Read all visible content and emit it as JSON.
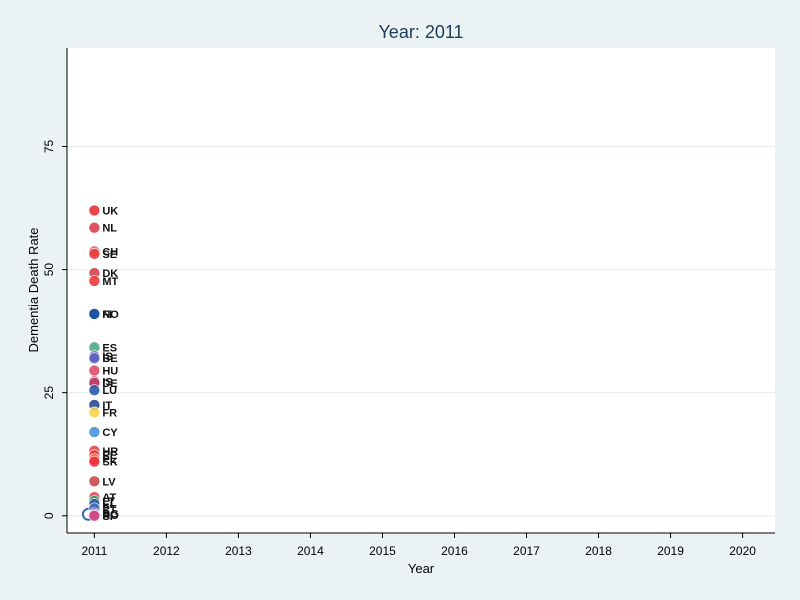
{
  "chart_data": {
    "type": "scatter",
    "title": "Year: 2011",
    "xlabel": "Year",
    "ylabel": "Dementia Death Rate",
    "xlim": [
      2010.62,
      2020.45
    ],
    "ylim": [
      -3.5,
      95
    ],
    "xticks": [
      2011,
      2012,
      2013,
      2014,
      2015,
      2016,
      2017,
      2018,
      2019,
      2020
    ],
    "yticks": [
      0,
      25,
      50,
      75
    ],
    "grid": true,
    "legend": "none",
    "points": [
      {
        "label": "UK",
        "x": 2011,
        "y": 62.0,
        "color": "#e8323a"
      },
      {
        "label": "NL",
        "x": 2011,
        "y": 58.5,
        "color": "#d9404f"
      },
      {
        "label": "CH",
        "x": 2011,
        "y": 53.7,
        "color": "#f06070"
      },
      {
        "label": "SE",
        "x": 2011,
        "y": 53.2,
        "color": "#ea3d3d"
      },
      {
        "label": "DK",
        "x": 2011,
        "y": 49.3,
        "color": "#cf4556"
      },
      {
        "label": "MT",
        "x": 2011,
        "y": 47.7,
        "color": "#ee3a3e"
      },
      {
        "label": "FI",
        "x": 2011,
        "y": 41.0,
        "color": "#2a5aa8"
      },
      {
        "label": "NO",
        "x": 2011,
        "y": 41.0,
        "color": "#1e4fa0"
      },
      {
        "label": "ES",
        "x": 2011,
        "y": 34.2,
        "color": "#4fa88a"
      },
      {
        "label": "IS",
        "x": 2011,
        "y": 32.4,
        "color": "#7a5ab8"
      },
      {
        "label": "BE",
        "x": 2011,
        "y": 32.0,
        "color": "#5a62c0"
      },
      {
        "label": "HU",
        "x": 2011,
        "y": 29.5,
        "color": "#e04a6a"
      },
      {
        "label": "IS",
        "x": 2011,
        "y": 27.3,
        "color": "#c84060"
      },
      {
        "label": "DE",
        "x": 2011,
        "y": 27.0,
        "color": "#b8406a"
      },
      {
        "label": "LU",
        "x": 2011,
        "y": 25.5,
        "color": "#2c5aa8"
      },
      {
        "label": "IT",
        "x": 2011,
        "y": 22.5,
        "color": "#2a4a90"
      },
      {
        "label": "FR",
        "x": 2011,
        "y": 21.0,
        "color": "#f5d54a"
      },
      {
        "label": "CY",
        "x": 2011,
        "y": 17.0,
        "color": "#4a90d8"
      },
      {
        "label": "HR",
        "x": 2011,
        "y": 13.2,
        "color": "#d84a5a"
      },
      {
        "label": "EE",
        "x": 2011,
        "y": 12.3,
        "color": "#e84040"
      },
      {
        "label": "PL",
        "x": 2011,
        "y": 11.5,
        "color": "#ff6030"
      },
      {
        "label": "SK",
        "x": 2011,
        "y": 11.0,
        "color": "#f03040"
      },
      {
        "label": "LV",
        "x": 2011,
        "y": 7.0,
        "color": "#c84a50"
      },
      {
        "label": "AT",
        "x": 2011,
        "y": 3.8,
        "color": "#e04a5a"
      },
      {
        "label": "LT",
        "x": 2011,
        "y": 3.0,
        "color": "#2a9a6a"
      },
      {
        "label": "EL",
        "x": 2011,
        "y": 2.4,
        "color": "#3a5aa8"
      },
      {
        "label": "PT",
        "x": 2011,
        "y": 1.5,
        "color": "#4a6ab8"
      },
      {
        "label": "BG",
        "x": 2011,
        "y": 0.5,
        "color": "#2a4ab0"
      },
      {
        "label": "RO",
        "x": 2011,
        "y": 0.2,
        "color": "#e04a5a"
      },
      {
        "label": "SI",
        "x": 2011,
        "y": 0.0,
        "color": "#d04a8a"
      }
    ]
  }
}
